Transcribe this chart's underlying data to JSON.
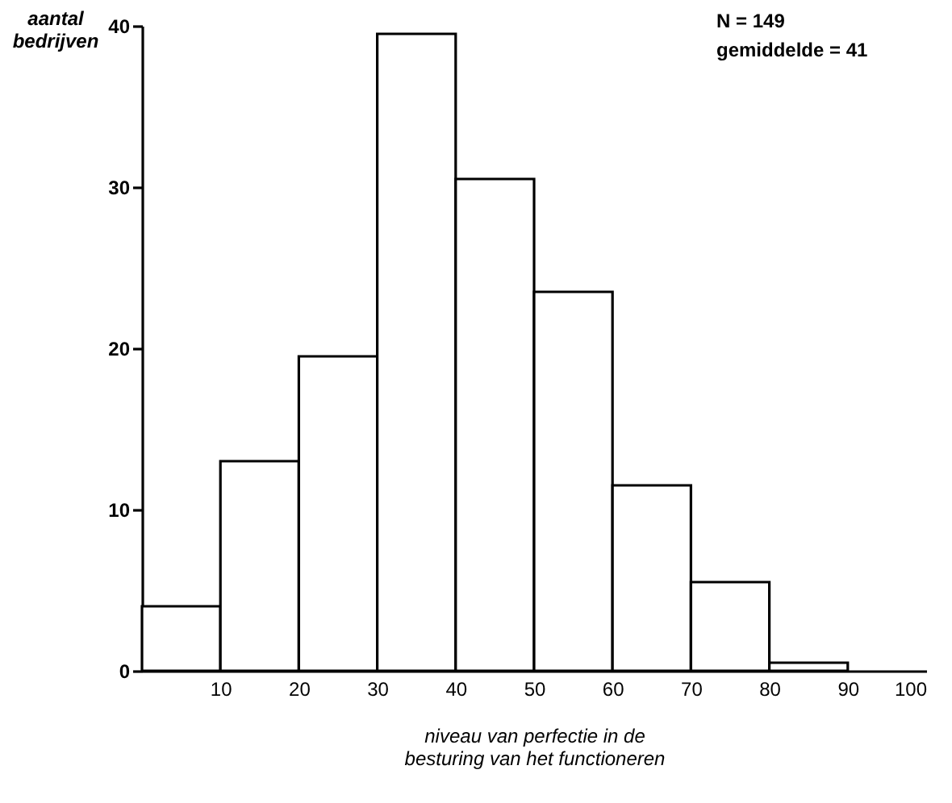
{
  "chart_data": {
    "type": "histogram",
    "xlabel": "niveau van perfectie in de\nbesturing van het functioneren",
    "ylabel": "aantal\nbedrijven",
    "annotations": [
      "N = 149",
      "gemiddelde = 41"
    ],
    "bins": [
      0,
      10,
      20,
      30,
      40,
      50,
      60,
      70,
      80,
      90
    ],
    "values": [
      4,
      13,
      19.5,
      39.5,
      30.5,
      23.5,
      11.5,
      5.5,
      0.5
    ],
    "color": "#ffffff",
    "xlim": [
      0,
      100
    ],
    "xticks": [
      10,
      20,
      30,
      40,
      50,
      60,
      70,
      80,
      90,
      100
    ],
    "ylim": [
      0,
      40
    ],
    "yticks": [
      0,
      10,
      20,
      30,
      40
    ],
    "grid": false
  }
}
